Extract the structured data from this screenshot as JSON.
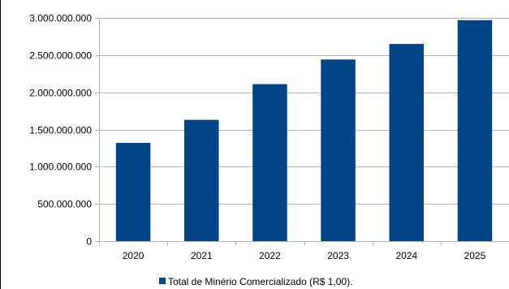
{
  "chart_data": {
    "type": "bar",
    "title": "",
    "xlabel": "",
    "ylabel": "",
    "categories": [
      "2020",
      "2021",
      "2022",
      "2023",
      "2024",
      "2025"
    ],
    "series": [
      {
        "name": "Total de Minério Comercializado (R$ 1,00).",
        "values": [
          1320000000,
          1630000000,
          2110000000,
          2440000000,
          2650000000,
          2970000000
        ],
        "color": "#004586"
      }
    ],
    "ylim": [
      0,
      3000000000
    ],
    "yticks": [
      0,
      500000000,
      1000000000,
      1500000000,
      2000000000,
      2500000000,
      3000000000
    ],
    "ytick_labels": [
      "0",
      "500.000.000",
      "1.000.000.000",
      "1.500.000.000",
      "2.000.000.000",
      "2.500.000.000",
      "3.000.000.000"
    ],
    "grid": "horizontal",
    "grid_color": "#b3b3b3",
    "legend_position": "bottom"
  }
}
